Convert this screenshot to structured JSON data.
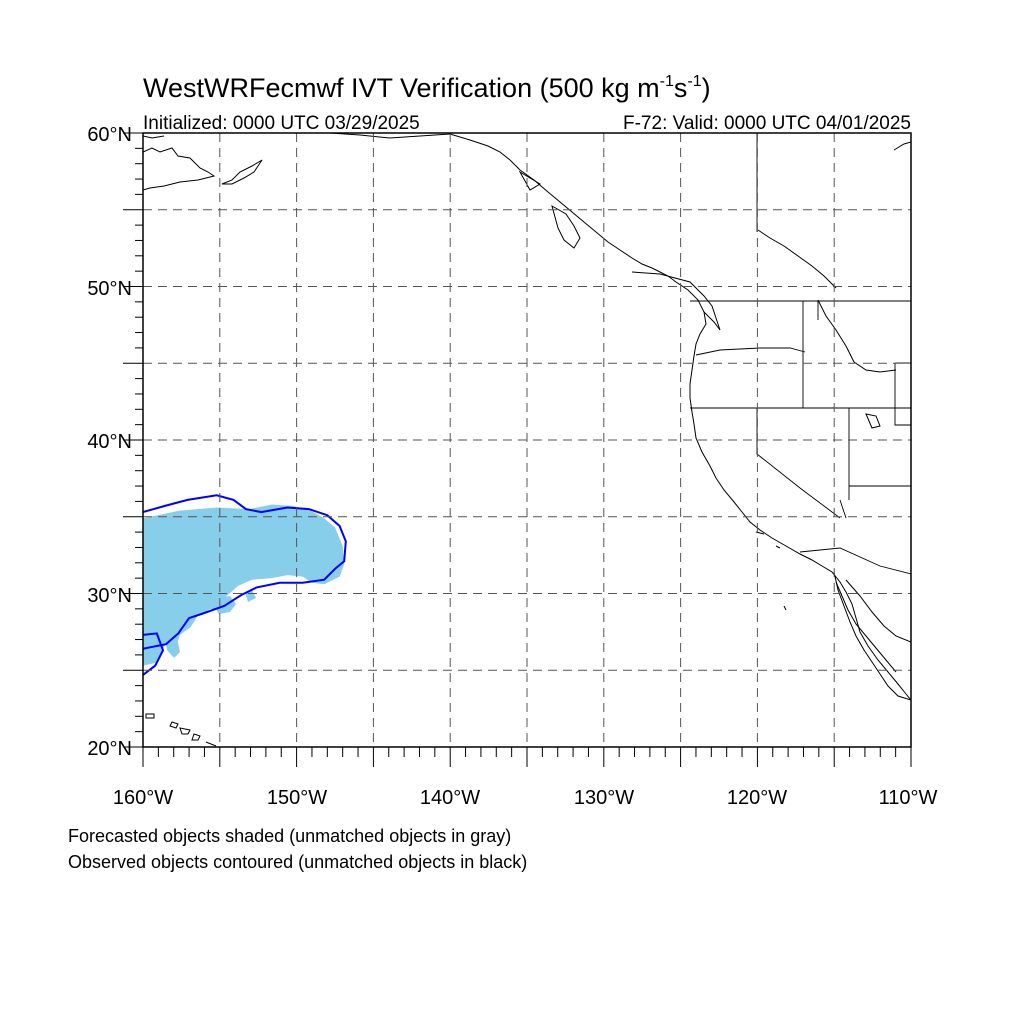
{
  "header": {
    "title": "WestWRFecmwf IVT Verification (500 kg m",
    "title_exp1": "-1",
    "title_mid": "s",
    "title_exp2": "-1",
    "title_end": ")",
    "initialized": "Initialized: 0000 UTC 03/29/2025",
    "valid": "F-72: Valid: 0000 UTC 04/01/2025"
  },
  "map": {
    "lon_range": [
      -160,
      -110
    ],
    "lat_range": [
      20,
      60
    ],
    "gridlines": "dashed",
    "lat_labels": [
      "60°N",
      "50°N",
      "40°N",
      "30°N",
      "20°N"
    ],
    "lon_labels": [
      "160°W",
      "150°W",
      "140°W",
      "130°W",
      "120°W",
      "110°W"
    ],
    "forecast_object_color": "#87ceeb",
    "observed_contour_color": "#0000ff",
    "coastline_color": "#000000",
    "forecast_object_outline": [
      [
        -160,
        34.9
      ],
      [
        -157.6,
        35.4
      ],
      [
        -155.2,
        35.6
      ],
      [
        -153.1,
        35.5
      ],
      [
        -151.6,
        35.8
      ],
      [
        -150.2,
        35.7
      ],
      [
        -149.1,
        35.4
      ],
      [
        -148.2,
        34.9
      ],
      [
        -147.5,
        34.3
      ],
      [
        -147.0,
        33.1
      ],
      [
        -146.9,
        31.9
      ],
      [
        -147.2,
        31.1
      ],
      [
        -148.2,
        30.6
      ],
      [
        -149.0,
        30.7
      ],
      [
        -149.6,
        31.1
      ],
      [
        -150.6,
        31.2
      ],
      [
        -151.6,
        31.0
      ],
      [
        -152.9,
        30.9
      ],
      [
        -153.8,
        30.5
      ],
      [
        -154.6,
        29.8
      ],
      [
        -154.8,
        28.9
      ],
      [
        -155.6,
        29.0
      ],
      [
        -156.4,
        28.6
      ],
      [
        -156.9,
        27.8
      ],
      [
        -157.6,
        27.3
      ],
      [
        -157.9,
        26.3
      ],
      [
        -158.5,
        26.8
      ],
      [
        -159.1,
        25.5
      ],
      [
        -160,
        25.3
      ]
    ],
    "observed_contour": [
      [
        -160,
        35.3
      ],
      [
        -158.6,
        35.7
      ],
      [
        -157.1,
        36.1
      ],
      [
        -155.2,
        36.4
      ],
      [
        -154.1,
        36.1
      ],
      [
        -153.3,
        35.5
      ],
      [
        -152.3,
        35.3
      ],
      [
        -150.6,
        35.6
      ],
      [
        -149.2,
        35.5
      ],
      [
        -148.0,
        35.1
      ],
      [
        -147.2,
        34.4
      ],
      [
        -146.8,
        33.4
      ],
      [
        -146.9,
        32.1
      ],
      [
        -147.5,
        31.6
      ],
      [
        -148.2,
        30.9
      ],
      [
        -149.6,
        30.7
      ],
      [
        -151.1,
        30.7
      ],
      [
        -152.6,
        30.4
      ],
      [
        -153.6,
        29.9
      ],
      [
        -154.7,
        29.2
      ],
      [
        -156.1,
        28.7
      ],
      [
        -157.0,
        28.4
      ],
      [
        -157.7,
        27.4
      ],
      [
        -158.5,
        26.7
      ],
      [
        -159.5,
        26.5
      ],
      [
        -160,
        26.4
      ]
    ],
    "observed_contour_loop": [
      [
        -160,
        27.3
      ],
      [
        -159.1,
        27.4
      ],
      [
        -158.7,
        26.3
      ],
      [
        -159.2,
        25.3
      ],
      [
        -160,
        24.7
      ]
    ]
  },
  "captions": {
    "line1": "Forecasted objects shaded (unmatched objects in gray)",
    "line2": "Observed objects contoured (unmatched objects in black)"
  }
}
